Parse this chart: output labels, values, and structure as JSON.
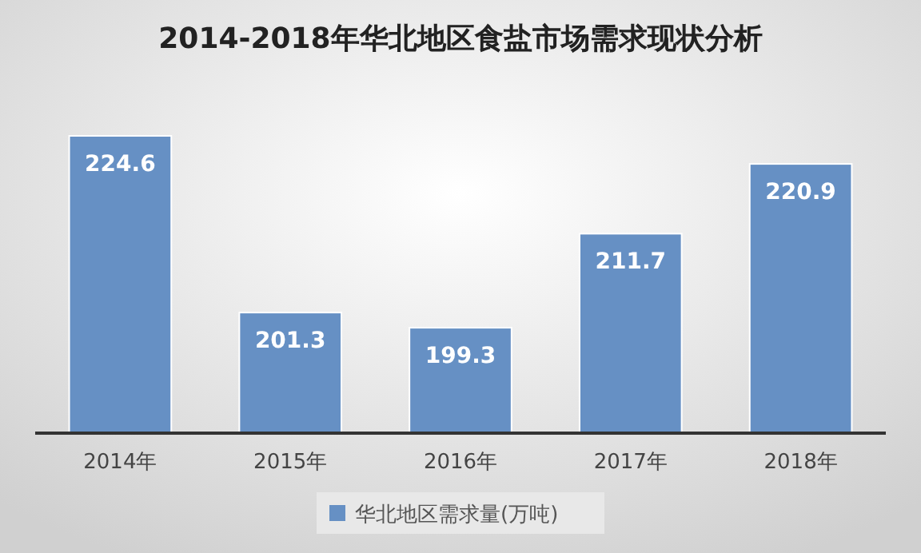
{
  "chart_data": {
    "type": "bar",
    "title": "2014-2018年华北地区食盐市场需求现状分析",
    "categories": [
      "2014年",
      "2015年",
      "2016年",
      "2017年",
      "2018年"
    ],
    "series": [
      {
        "name": "华北地区需求量(万吨)",
        "color": "#6690c4",
        "values": [
          224.6,
          201.3,
          199.3,
          211.7,
          220.9
        ]
      }
    ],
    "ylim": [
      185.4,
      224.6
    ],
    "tick_labels": "x",
    "data_labels": true,
    "legend": "bottom"
  }
}
